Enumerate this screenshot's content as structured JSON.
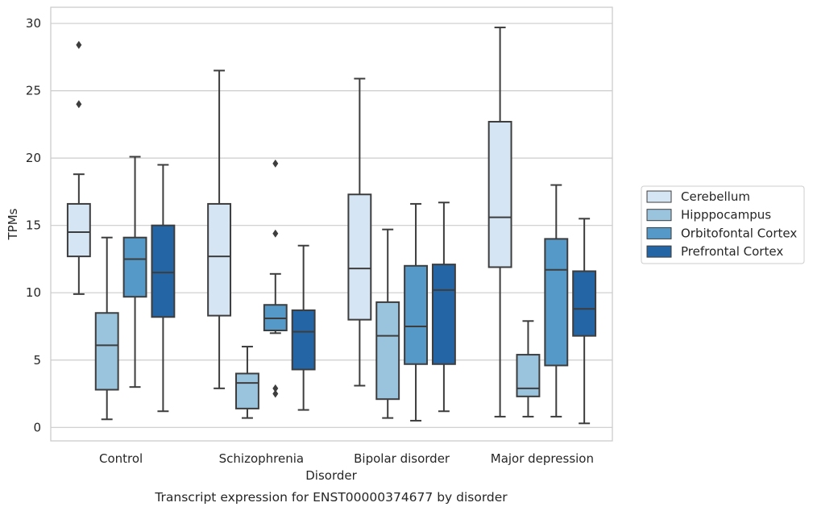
{
  "chart_data": {
    "type": "boxplot",
    "title": "",
    "caption": "Transcript expression for ENST00000374677 by disorder",
    "xlabel": "Disorder",
    "ylabel": "TPMs",
    "ylim": [
      -1,
      31.2
    ],
    "yticks": [
      0,
      5,
      10,
      15,
      20,
      25,
      30
    ],
    "grid": "horizontal",
    "legend_position": "right",
    "categories": [
      "Control",
      "Schizophrenia",
      "Bipolar disorder",
      "Major depression"
    ],
    "series": [
      {
        "name": "Cerebellum",
        "color": "#d6e5f4",
        "boxes": [
          {
            "whislo": 9.9,
            "q1": 12.7,
            "med": 14.5,
            "q3": 16.6,
            "whishi": 18.8,
            "fliers": [
              24.0,
              28.4
            ]
          },
          {
            "whislo": 2.9,
            "q1": 8.3,
            "med": 12.7,
            "q3": 16.6,
            "whishi": 26.5,
            "fliers": []
          },
          {
            "whislo": 3.1,
            "q1": 8.0,
            "med": 11.8,
            "q3": 17.3,
            "whishi": 25.9,
            "fliers": []
          },
          {
            "whislo": 0.8,
            "q1": 11.9,
            "med": 15.6,
            "q3": 22.7,
            "whishi": 29.7,
            "fliers": []
          }
        ]
      },
      {
        "name": "Hipppocampus",
        "color": "#9ac4de",
        "boxes": [
          {
            "whislo": 0.6,
            "q1": 2.8,
            "med": 6.1,
            "q3": 8.5,
            "whishi": 14.1,
            "fliers": []
          },
          {
            "whislo": 0.7,
            "q1": 1.4,
            "med": 3.3,
            "q3": 4.0,
            "whishi": 6.0,
            "fliers": []
          },
          {
            "whislo": 0.7,
            "q1": 2.1,
            "med": 6.8,
            "q3": 9.3,
            "whishi": 14.7,
            "fliers": []
          },
          {
            "whislo": 0.8,
            "q1": 2.3,
            "med": 2.9,
            "q3": 5.4,
            "whishi": 7.9,
            "fliers": []
          }
        ]
      },
      {
        "name": "Orbitofontal Cortex",
        "color": "#5599c8",
        "boxes": [
          {
            "whislo": 3.0,
            "q1": 9.7,
            "med": 12.5,
            "q3": 14.1,
            "whishi": 20.1,
            "fliers": []
          },
          {
            "whislo": 7.0,
            "q1": 7.2,
            "med": 8.1,
            "q3": 9.1,
            "whishi": 11.4,
            "fliers": [
              2.5,
              2.9,
              14.4,
              19.6
            ]
          },
          {
            "whislo": 0.5,
            "q1": 4.7,
            "med": 7.5,
            "q3": 12.0,
            "whishi": 16.6,
            "fliers": []
          },
          {
            "whislo": 0.8,
            "q1": 4.6,
            "med": 11.7,
            "q3": 14.0,
            "whishi": 18.0,
            "fliers": []
          }
        ]
      },
      {
        "name": "Prefrontal Cortex",
        "color": "#2465a5",
        "boxes": [
          {
            "whislo": 1.2,
            "q1": 8.2,
            "med": 11.5,
            "q3": 15.0,
            "whishi": 19.5,
            "fliers": []
          },
          {
            "whislo": 1.3,
            "q1": 4.3,
            "med": 7.1,
            "q3": 8.7,
            "whishi": 13.5,
            "fliers": []
          },
          {
            "whislo": 1.2,
            "q1": 4.7,
            "med": 10.2,
            "q3": 12.1,
            "whishi": 16.7,
            "fliers": []
          },
          {
            "whislo": 0.3,
            "q1": 6.8,
            "med": 8.8,
            "q3": 11.6,
            "whishi": 15.5,
            "fliers": []
          }
        ]
      }
    ]
  }
}
